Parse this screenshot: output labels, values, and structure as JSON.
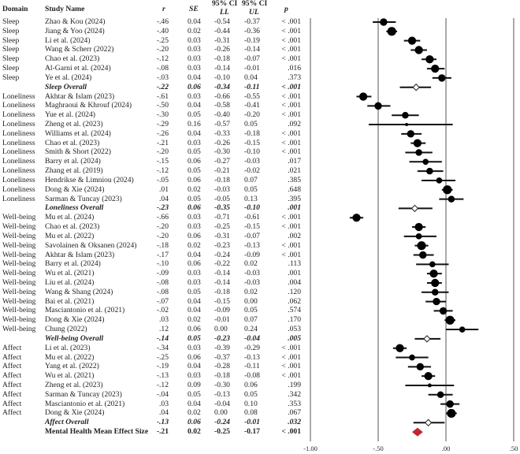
{
  "chart_data": {
    "type": "forest",
    "headers": {
      "domain": "Domain",
      "study": "Study Name",
      "r": "r",
      "se": "SE",
      "ll_top": "95% CI",
      "ll": "LL",
      "ul_top": "95% CI",
      "ul": "UL",
      "p": "p"
    },
    "xlim": [
      -1.0,
      0.5
    ],
    "xticks": [
      -1.0,
      -0.5,
      0.0,
      0.5
    ],
    "xtick_labels": [
      "-1.00",
      "-.50",
      ".00",
      ".50"
    ],
    "summary_color": "#c0282d",
    "rows": [
      {
        "domain": "Sleep",
        "study": "Zhao & Kou (2024)",
        "r": "-.46",
        "se": "0.04",
        "ll": "-0.54",
        "ul": "-0.37",
        "p": "< .001",
        "kind": "study"
      },
      {
        "domain": "Sleep",
        "study": "Jiang & Yoo (2024)",
        "r": "-.40",
        "se": "0.02",
        "ll": "-0.44",
        "ul": "-0.36",
        "p": "< .001",
        "kind": "study"
      },
      {
        "domain": "Sleep",
        "study": "Li et al. (2024)",
        "r": "-.25",
        "se": "0.03",
        "ll": "-0.31",
        "ul": "-0.19",
        "p": "< .001",
        "kind": "study"
      },
      {
        "domain": "Sleep",
        "study": "Wang & Scherr (2022)",
        "r": "-.20",
        "se": "0.03",
        "ll": "-0.26",
        "ul": "-0.14",
        "p": "< .001",
        "kind": "study"
      },
      {
        "domain": "Sleep",
        "study": "Chao et al. (2023)",
        "r": "-.12",
        "se": "0.03",
        "ll": "-0.18",
        "ul": "-0.07",
        "p": "< .001",
        "kind": "study"
      },
      {
        "domain": "Sleep",
        "study": "Al-Garni et al. (2024)",
        "r": "-.08",
        "se": "0.03",
        "ll": "-0.14",
        "ul": "-0.01",
        "p": ".016",
        "kind": "study"
      },
      {
        "domain": "Sleep",
        "study": "Ye et al. (2024)",
        "r": "-.03",
        "se": "0.04",
        "ll": "-0.10",
        "ul": "0.04",
        "p": ".373",
        "kind": "study"
      },
      {
        "domain": "",
        "study": "Sleep Overall",
        "r": "-.22",
        "se": "0.06",
        "ll": "-0.34",
        "ul": "-0.11",
        "p": "< .001",
        "kind": "overall"
      },
      {
        "domain": "Loneliness",
        "study": "Akhtar & Islam (2023)",
        "r": "-.61",
        "se": "0.03",
        "ll": "-0.66",
        "ul": "-0.55",
        "p": "< .001",
        "kind": "study"
      },
      {
        "domain": "Loneliness",
        "study": "Maghraoui & Khrouf (2024)",
        "r": "-.50",
        "se": "0.04",
        "ll": "-0.58",
        "ul": "-0.41",
        "p": "< .001",
        "kind": "study"
      },
      {
        "domain": "Loneliness",
        "study": "Yue et al. (2024)",
        "r": "-.30",
        "se": "0.05",
        "ll": "-0.40",
        "ul": "-0.20",
        "p": "< .001",
        "kind": "study"
      },
      {
        "domain": "Loneliness",
        "study": "Zheng et al. (2023)",
        "r": "-.29",
        "se": "0.16",
        "ll": "-0.57",
        "ul": "0.05",
        "p": ".092",
        "kind": "study"
      },
      {
        "domain": "Loneliness",
        "study": "Williams et al. (2024)",
        "r": "-.26",
        "se": "0.04",
        "ll": "-0.33",
        "ul": "-0.18",
        "p": "< .001",
        "kind": "study"
      },
      {
        "domain": "Loneliness",
        "study": "Chao et al. (2023)",
        "r": "-.21",
        "se": "0.03",
        "ll": "-0.26",
        "ul": "-0.15",
        "p": "< .001",
        "kind": "study"
      },
      {
        "domain": "Loneliness",
        "study": "Smith & Short (2022)",
        "r": "-.20",
        "se": "0.05",
        "ll": "-0.30",
        "ul": "-0.10",
        "p": "< .001",
        "kind": "study"
      },
      {
        "domain": "Loneliness",
        "study": "Barry et al. (2024)",
        "r": "-.15",
        "se": "0.06",
        "ll": "-0.27",
        "ul": "-0.03",
        "p": ".017",
        "kind": "study"
      },
      {
        "domain": "Loneliness",
        "study": "Zhang et al. (2019)",
        "r": "-.12",
        "se": "0.05",
        "ll": "-0.21",
        "ul": "-0.02",
        "p": ".021",
        "kind": "study"
      },
      {
        "domain": "Loneliness",
        "study": "Hendrikse & Limniou (2024)",
        "r": "-.05",
        "se": "0.06",
        "ll": "-0.18",
        "ul": "0.07",
        "p": ".385",
        "kind": "study"
      },
      {
        "domain": "Loneliness",
        "study": "Dong & Xie (2024)",
        "r": ".01",
        "se": "0.02",
        "ll": "-0.03",
        "ul": "0.05",
        "p": ".648",
        "kind": "study"
      },
      {
        "domain": "Loneliness",
        "study": "Sarman & Tuncay (2023)",
        "r": ".04",
        "se": "0.05",
        "ll": "-0.05",
        "ul": "0.13",
        "p": ".395",
        "kind": "study"
      },
      {
        "domain": "",
        "study": "Loneliness Overall",
        "r": "-.23",
        "se": "0.06",
        "ll": "-0.35",
        "ul": "-0.10",
        "p": ".001",
        "kind": "overall"
      },
      {
        "domain": "Well-being",
        "study": "Mu et al. (2024)",
        "r": "-.66",
        "se": "0.03",
        "ll": "-0.71",
        "ul": "-0.61",
        "p": "< .001",
        "kind": "study"
      },
      {
        "domain": "Well-being",
        "study": "Chao et al. (2023)",
        "r": "-.20",
        "se": "0.03",
        "ll": "-0.25",
        "ul": "-0.15",
        "p": "< .001",
        "kind": "study"
      },
      {
        "domain": "Well-being",
        "study": "Mu et al. (2022)",
        "r": "-.20",
        "se": "0.06",
        "ll": "-0.31",
        "ul": "-0.07",
        "p": ".002",
        "kind": "study"
      },
      {
        "domain": "Well-being",
        "study": "Savolainen & Oksanen (2024)",
        "r": "-.18",
        "se": "0.02",
        "ll": "-0.23",
        "ul": "-0.13",
        "p": "< .001",
        "kind": "study"
      },
      {
        "domain": "Well-being",
        "study": "Akhtar & Islam (2023)",
        "r": "-.17",
        "se": "0.04",
        "ll": "-0.24",
        "ul": "-0.09",
        "p": "< .001",
        "kind": "study"
      },
      {
        "domain": "Well-being",
        "study": "Barry et al. (2024)",
        "r": "-.10",
        "se": "0.06",
        "ll": "-0.22",
        "ul": "0.02",
        "p": ".113",
        "kind": "study"
      },
      {
        "domain": "Well-being",
        "study": "Wu et al. (2021)",
        "r": "-.09",
        "se": "0.03",
        "ll": "-0.14",
        "ul": "-0.03",
        "p": ".001",
        "kind": "study"
      },
      {
        "domain": "Well-being",
        "study": "Liu et al. (2024)",
        "r": "-.08",
        "se": "0.03",
        "ll": "-0.14",
        "ul": "-0.03",
        "p": ".004",
        "kind": "study"
      },
      {
        "domain": "Well-being",
        "study": "Wang & Shang (2024)",
        "r": "-.08",
        "se": "0.05",
        "ll": "-0.18",
        "ul": "0.02",
        "p": ".120",
        "kind": "study"
      },
      {
        "domain": "Well-being",
        "study": "Bai et al. (2021)",
        "r": "-.07",
        "se": "0.04",
        "ll": "-0.15",
        "ul": "0.00",
        "p": ".062",
        "kind": "study"
      },
      {
        "domain": "Well-being",
        "study": "Masciantonio et al. (2021)",
        "r": "-.02",
        "se": "0.04",
        "ll": "-0.09",
        "ul": "0.05",
        "p": ".574",
        "kind": "study"
      },
      {
        "domain": "Well-being",
        "study": "Dong & Xie (2024)",
        "r": ".03",
        "se": "0.02",
        "ll": "-0.01",
        "ul": "0.07",
        "p": ".170",
        "kind": "study"
      },
      {
        "domain": "Well-being",
        "study": "Chung (2022)",
        "r": ".12",
        "se": "0.06",
        "ll": "0.00",
        "ul": "0.24",
        "p": ".053",
        "kind": "study"
      },
      {
        "domain": "",
        "study": "Well-being Overall",
        "r": "-.14",
        "se": "0.05",
        "ll": "-0.23",
        "ul": "-0.04",
        "p": ".005",
        "kind": "overall"
      },
      {
        "domain": "Affect",
        "study": "Li et al. (2023)",
        "r": "-.34",
        "se": "0.03",
        "ll": "-0.39",
        "ul": "-0.29",
        "p": "< .001",
        "kind": "study"
      },
      {
        "domain": "Affect",
        "study": "Mu et al. (2022)",
        "r": "-.25",
        "se": "0.06",
        "ll": "-0.37",
        "ul": "-0.13",
        "p": "< .001",
        "kind": "study"
      },
      {
        "domain": "Affect",
        "study": "Yang et al. (2022)",
        "r": "-.19",
        "se": "0.04",
        "ll": "-0.28",
        "ul": "-0.11",
        "p": "< .001",
        "kind": "study"
      },
      {
        "domain": "Affect",
        "study": "Wu et al. (2021)",
        "r": "-.13",
        "se": "0.03",
        "ll": "-0.18",
        "ul": "-0.08",
        "p": "< .001",
        "kind": "study"
      },
      {
        "domain": "Affect",
        "study": "Zheng et al. (2023)",
        "r": "-.12",
        "se": "0.09",
        "ll": "-0.30",
        "ul": "0.06",
        "p": ".199",
        "kind": "study"
      },
      {
        "domain": "Affect",
        "study": "Sarman & Tuncay (2023)",
        "r": "-.04",
        "se": "0.05",
        "ll": "-0.13",
        "ul": "0.05",
        "p": ".342",
        "kind": "study"
      },
      {
        "domain": "Affect",
        "study": "Masciantonio et al. (2021)",
        "r": ".03",
        "se": "0.04",
        "ll": "-0.04",
        "ul": "0.10",
        "p": ".353",
        "kind": "study"
      },
      {
        "domain": "Affect",
        "study": "Dong & Xie (2024)",
        "r": ".04",
        "se": "0.02",
        "ll": "0.00",
        "ul": "0.08",
        "p": ".067",
        "kind": "study"
      },
      {
        "domain": "",
        "study": "Affect Overall",
        "r": "-.13",
        "se": "0.06",
        "ll": "-0.24",
        "ul": "-0.01",
        "p": ".032",
        "kind": "overall"
      },
      {
        "domain": "",
        "study": "Mental Health Mean Effect Size",
        "r": "-.21",
        "se": "0.02",
        "ll": "-0.25",
        "ul": "-0.17",
        "p": "< .001",
        "kind": "total"
      }
    ]
  }
}
